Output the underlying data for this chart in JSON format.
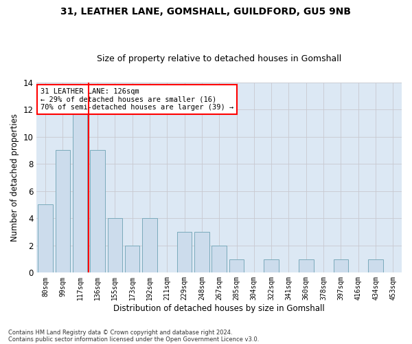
{
  "title1": "31, LEATHER LANE, GOMSHALL, GUILDFORD, GU5 9NB",
  "title2": "Size of property relative to detached houses in Gomshall",
  "xlabel": "Distribution of detached houses by size in Gomshall",
  "ylabel": "Number of detached properties",
  "categories": [
    "80sqm",
    "99sqm",
    "117sqm",
    "136sqm",
    "155sqm",
    "173sqm",
    "192sqm",
    "211sqm",
    "229sqm",
    "248sqm",
    "267sqm",
    "285sqm",
    "304sqm",
    "322sqm",
    "341sqm",
    "360sqm",
    "378sqm",
    "397sqm",
    "416sqm",
    "434sqm",
    "453sqm"
  ],
  "values": [
    5,
    9,
    12,
    9,
    4,
    2,
    4,
    0,
    3,
    3,
    2,
    1,
    0,
    1,
    0,
    1,
    0,
    1,
    0,
    1,
    0
  ],
  "bar_color": "#ccdcec",
  "bar_edge_color": "#7aaabb",
  "vline_color": "red",
  "vline_index": 2.5,
  "annotation_title": "31 LEATHER LANE: 126sqm",
  "annotation_line1": "← 29% of detached houses are smaller (16)",
  "annotation_line2": "70% of semi-detached houses are larger (39) →",
  "annotation_box_color": "red",
  "ylim": [
    0,
    14
  ],
  "yticks": [
    0,
    2,
    4,
    6,
    8,
    10,
    12,
    14
  ],
  "grid_color": "#c8c8d0",
  "bg_color": "#dce8f4",
  "footer1": "Contains HM Land Registry data © Crown copyright and database right 2024.",
  "footer2": "Contains public sector information licensed under the Open Government Licence v3.0."
}
